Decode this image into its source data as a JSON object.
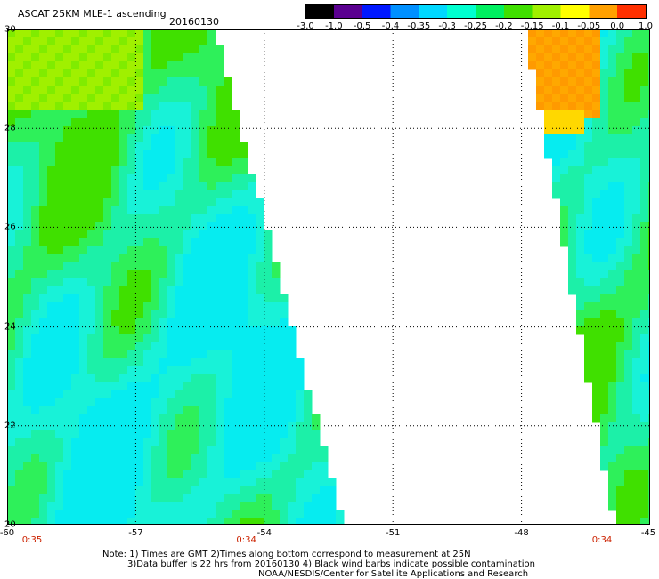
{
  "title": "ASCAT 25KM MLE-1 ascending",
  "date": "20160130",
  "colorbar": {
    "labels": [
      "-3.0",
      "-1.0",
      "-0.5",
      "-0.4",
      "-0.35",
      "-0.3",
      "-0.25",
      "-0.2",
      "-0.15",
      "-0.1",
      "-0.05",
      "0.0",
      "1.0"
    ],
    "colors": [
      "#000000",
      "#5a0090",
      "#0018ff",
      "#0090ff",
      "#00d8ff",
      "#00ffd0",
      "#00f060",
      "#40e000",
      "#a0f000",
      "#ffff00",
      "#ffa000",
      "#ff3000"
    ]
  },
  "axes": {
    "lon_ticks": [
      "-60",
      "-57",
      "-54",
      "-51",
      "-48",
      "-45"
    ],
    "lat_ticks": [
      "30",
      "28",
      "26",
      "24",
      "22",
      "20"
    ],
    "lon_range": [
      -60,
      -45
    ],
    "lat_range": [
      20,
      30
    ]
  },
  "time_labels": [
    {
      "lon": -60,
      "text": "0:35"
    },
    {
      "lon": -55,
      "text": "0:34"
    },
    {
      "lon": -45,
      "text": "0:34"
    }
  ],
  "notes": [
    "Note: 1) Times are GMT 2)Times along bottom correspond to measurement at 25N",
    "3)Data buffer is 22 hrs from 20160130 4) Black wind barbs indicate possible contamination",
    "NOAA/NESDIS/Center for Satellite Applications and Research"
  ]
}
